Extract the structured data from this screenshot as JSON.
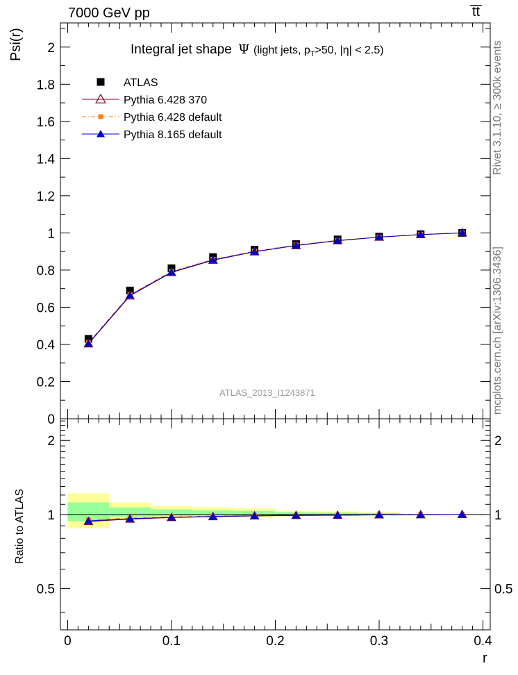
{
  "header": {
    "left": "7000 GeV pp",
    "right": "t̅t̅"
  },
  "side_labels": {
    "upper": "Rivet 3.1.10, ≥ 300k events",
    "lower": "mcplots.cern.ch [arXiv:1306.3436]"
  },
  "chart_data": [
    {
      "type": "line",
      "title": "Integral jet shape",
      "title_symbol": "Ψ",
      "title_cond_a": "(light jets, p",
      "title_cond_sub": "T",
      "title_cond_b": ">50, |η| < 2.5)",
      "ylabel": "Psi(r)",
      "xlabel": "r",
      "xlim": [
        -0.007,
        0.407
      ],
      "ylim": [
        0,
        2.13
      ],
      "yticks": [
        0,
        0.2,
        0.4,
        0.6,
        0.8,
        1,
        1.2,
        1.4,
        1.6,
        1.8,
        2
      ],
      "ytick_labels": [
        "0",
        "0.2",
        "0.4",
        "0.6",
        "0.8",
        "1",
        "1.2",
        "1.4",
        "1.6",
        "1.8",
        "2"
      ],
      "watermark": "ATLAS_2013_I1243871",
      "x": [
        0.02,
        0.06,
        0.1,
        0.14,
        0.18,
        0.22,
        0.26,
        0.3,
        0.34,
        0.38
      ],
      "series": [
        {
          "name": "ATLAS",
          "color": "#000000",
          "marker": "square",
          "values": [
            0.43,
            0.69,
            0.81,
            0.87,
            0.91,
            0.94,
            0.965,
            0.98,
            0.993,
            1.0
          ]
        },
        {
          "name": "Pythia 6.428 370",
          "color": "#800020",
          "marker": "open-triangle",
          "values": [
            0.403,
            0.661,
            0.787,
            0.853,
            0.898,
            0.932,
            0.958,
            0.977,
            0.991,
            1.0
          ]
        },
        {
          "name": "Pythia 6.428 default",
          "color": "#ff7f0e",
          "marker": "small-square",
          "values": [
            0.41,
            0.668,
            0.793,
            0.858,
            0.902,
            0.935,
            0.96,
            0.978,
            0.992,
            1.0
          ]
        },
        {
          "name": "Pythia 8.165 default",
          "color": "#0000cc",
          "marker": "triangle",
          "values": [
            0.405,
            0.664,
            0.789,
            0.855,
            0.899,
            0.933,
            0.959,
            0.977,
            0.991,
            1.0
          ]
        }
      ]
    },
    {
      "type": "line",
      "ylabel": "Ratio to ATLAS",
      "xlabel": "r",
      "xlim": [
        -0.007,
        0.407
      ],
      "ylim": [
        0.34,
        2.45
      ],
      "yscale": "log",
      "yticks": [
        0.5,
        1,
        2
      ],
      "ytick_labels": [
        "0.5",
        "1",
        "2"
      ],
      "xticks": [
        0,
        0.1,
        0.2,
        0.3,
        0.4
      ],
      "xtick_labels": [
        "0",
        "0.1",
        "0.2",
        "0.3",
        "0.4"
      ],
      "bands": [
        {
          "x0": 0.0,
          "x1": 0.04,
          "yellow": [
            0.88,
            1.22
          ],
          "green": [
            0.94,
            1.12
          ]
        },
        {
          "x0": 0.04,
          "x1": 0.08,
          "yellow": [
            0.95,
            1.12
          ],
          "green": [
            0.98,
            1.07
          ]
        },
        {
          "x0": 0.08,
          "x1": 0.12,
          "yellow": [
            0.965,
            1.085
          ],
          "green": [
            0.985,
            1.05
          ]
        },
        {
          "x0": 0.12,
          "x1": 0.16,
          "yellow": [
            0.975,
            1.07
          ],
          "green": [
            0.99,
            1.04
          ]
        },
        {
          "x0": 0.16,
          "x1": 0.2,
          "yellow": [
            0.98,
            1.06
          ],
          "green": [
            0.99,
            1.035
          ]
        },
        {
          "x0": 0.2,
          "x1": 0.24,
          "yellow": [
            0.985,
            1.035
          ],
          "green": [
            0.993,
            1.022
          ]
        },
        {
          "x0": 0.24,
          "x1": 0.28,
          "yellow": [
            0.988,
            1.03
          ],
          "green": [
            0.995,
            1.018
          ]
        },
        {
          "x0": 0.28,
          "x1": 0.32,
          "yellow": [
            0.99,
            1.022
          ],
          "green": [
            0.996,
            1.013
          ]
        }
      ],
      "x": [
        0.02,
        0.06,
        0.1,
        0.14,
        0.18,
        0.22,
        0.26,
        0.3,
        0.34,
        0.38
      ],
      "series": [
        {
          "name": "Pythia 6.428 370",
          "color": "#800020",
          "marker": "open-triangle",
          "values": [
            0.937,
            0.958,
            0.972,
            0.98,
            0.987,
            0.991,
            0.993,
            0.997,
            0.998,
            1.0
          ]
        },
        {
          "name": "Pythia 6.428 default",
          "color": "#ff7f0e",
          "marker": "small-square",
          "values": [
            0.953,
            0.968,
            0.979,
            0.986,
            0.991,
            0.995,
            0.995,
            0.998,
            0.999,
            1.0
          ]
        },
        {
          "name": "Pythia 8.165 default",
          "color": "#0000cc",
          "marker": "triangle",
          "values": [
            0.942,
            0.962,
            0.974,
            0.983,
            0.988,
            0.993,
            0.994,
            0.997,
            0.998,
            1.0
          ]
        }
      ]
    }
  ]
}
